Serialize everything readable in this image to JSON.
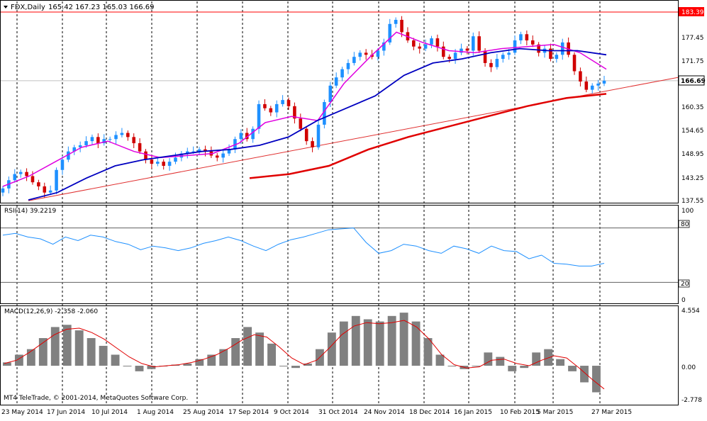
{
  "header": {
    "symbol_label": "FDX,Daily",
    "ohlc": "165.42 167.23 165.03 166.69"
  },
  "main_scale": [
    "183.39",
    "177.45",
    "171.75",
    "166.69",
    "160.35",
    "154.65",
    "148.95",
    "143.25",
    "137.55"
  ],
  "rsi": {
    "label": "RSI(14) 39.2219",
    "scale": [
      "100",
      "80",
      "20",
      "0"
    ]
  },
  "macd": {
    "label": "MACD(12,26,9) -2.358 -2.060",
    "scale": [
      "4.554",
      "0.00",
      "-2.778"
    ]
  },
  "footer": {
    "copyright": "MT4 TeleTrade, © 2001-2014, MetaQuotes Software Corp."
  },
  "time_axis": [
    "23 May 2014",
    "17 Jun 2014",
    "10 Jul 2014",
    "1 Aug 2014",
    "25 Aug 2014",
    "17 Sep 2014",
    "9 Oct 2014",
    "31 Oct 2014",
    "24 Nov 2014",
    "18 Dec 2014",
    "16 Jan 2015",
    "10 Feb 2015",
    "5 Mar 2015",
    "27 Mar 2015"
  ],
  "colors": {
    "bull_candle": "#1e90ff",
    "bear_candle": "#d00000",
    "ma_fast": "#e000e0",
    "ma_mid": "#0000c0",
    "ma_slow": "#e00000",
    "trendline": "#e03030",
    "rsi_line": "#1e90ff",
    "macd_hist": "#808080",
    "macd_signal": "#e00000",
    "resistance_line": "#ff0000"
  },
  "chart_data": {
    "type": "candlestick",
    "symbol": "FDX",
    "timeframe": "Daily",
    "close_approx": [
      140.5,
      142.5,
      144.0,
      144.5,
      143.5,
      142.0,
      141.0,
      139.5,
      140.0,
      145.0,
      147.5,
      149.5,
      150.5,
      151.0,
      152.0,
      153.0,
      151.5,
      152.5,
      152.5,
      153.5,
      154.0,
      153.0,
      151.5,
      149.5,
      147.5,
      146.5,
      147.0,
      146.0,
      147.0,
      148.0,
      149.0,
      149.5,
      149.5,
      150.0,
      149.5,
      148.5,
      148.0,
      149.0,
      150.0,
      152.5,
      154.0,
      152.5,
      155.0,
      161.0,
      160.0,
      159.0,
      161.0,
      162.0,
      160.5,
      157.5,
      155.0,
      152.0,
      150.5,
      156.0,
      161.5,
      165.5,
      167.5,
      169.5,
      171.0,
      172.5,
      173.5,
      173.0,
      172.5,
      174.0,
      176.0,
      180.5,
      181.5,
      178.5,
      176.5,
      175.0,
      174.5,
      175.5,
      177.0,
      175.0,
      172.5,
      172.0,
      173.5,
      174.5,
      174.0,
      177.5,
      174.0,
      171.0,
      170.0,
      172.0,
      173.0,
      173.5,
      176.5,
      178.0,
      176.5,
      175.5,
      173.5,
      174.5,
      172.0,
      173.0,
      176.0,
      173.0,
      169.0,
      166.5,
      164.5,
      165.5,
      166.0,
      166.69
    ],
    "ma_fast": [
      141.0,
      143.5,
      147.0,
      150.5,
      152.0,
      149.5,
      148.0,
      148.5,
      149.0,
      151.5,
      156.5,
      158.0,
      157.0,
      166.0,
      172.5,
      178.5,
      176.0,
      174.0,
      173.5,
      174.5,
      175.0,
      175.5,
      173.5,
      169.5
    ],
    "ma_mid": [
      137.7,
      139.5,
      143.0,
      146.0,
      147.5,
      148.5,
      149.5,
      150.0,
      151.0,
      153.0,
      157.0,
      160.0,
      163.0,
      168.0,
      171.0,
      172.0,
      173.5,
      174.5,
      174.0,
      174.0,
      173.0
    ],
    "ma_slow": [
      143.0,
      144.0,
      146.0,
      150.0,
      153.0,
      155.5,
      158.0,
      160.5,
      162.5,
      163.5
    ],
    "trendline": [
      [
        0,
        137.5
      ],
      [
        1,
        167.5
      ]
    ],
    "horizontal_level": 183.39,
    "main_scale": [
      183.39,
      177.45,
      171.75,
      166.69,
      160.35,
      154.65,
      148.95,
      143.25,
      137.55
    ],
    "rsi": {
      "period": 14,
      "value": 39.2219,
      "levels": [
        80,
        20
      ],
      "ylim": [
        0,
        100
      ],
      "values": [
        72,
        74,
        70,
        68,
        62,
        70,
        66,
        72,
        70,
        65,
        62,
        56,
        60,
        58,
        55,
        58,
        63,
        66,
        70,
        66,
        60,
        55,
        62,
        67,
        70,
        74,
        78,
        79,
        80,
        64,
        52,
        55,
        62,
        60,
        55,
        52,
        60,
        57,
        52,
        60,
        55,
        54,
        46,
        50,
        41,
        40,
        38,
        38,
        41
      ]
    },
    "macd": {
      "fast": 12,
      "slow": 26,
      "signal": 9,
      "main": -2.358,
      "signal_value": -2.06,
      "ylim": [
        -3.2,
        5.0
      ],
      "hist": [
        0.3,
        1.0,
        1.5,
        2.5,
        3.5,
        3.7,
        3.2,
        2.5,
        1.8,
        1.0,
        0.0,
        -0.5,
        -0.3,
        0.0,
        0.1,
        0.2,
        0.6,
        1.0,
        1.5,
        2.5,
        3.5,
        3.0,
        2.0,
        0.0,
        -0.2,
        0.2,
        1.5,
        3.0,
        4.0,
        4.5,
        4.2,
        4.0,
        4.5,
        4.8,
        4.0,
        2.5,
        1.0,
        0.0,
        -0.3,
        0.0,
        1.2,
        0.8,
        -0.5,
        -0.2,
        1.2,
        1.5,
        0.6,
        -0.5,
        -1.5,
        -2.4
      ],
      "signal_line": [
        0.2,
        0.5,
        1.2,
        2.0,
        2.8,
        3.3,
        3.4,
        3.0,
        2.4,
        1.6,
        0.8,
        0.2,
        -0.1,
        0.0,
        0.1,
        0.3,
        0.6,
        1.0,
        1.6,
        2.3,
        2.8,
        2.6,
        1.7,
        0.7,
        0.1,
        0.5,
        1.6,
        2.8,
        3.6,
        3.9,
        3.8,
        3.9,
        4.1,
        3.5,
        2.4,
        1.0,
        0.1,
        -0.2,
        -0.1,
        0.5,
        0.6,
        0.2,
        0.0,
        0.5,
        0.9,
        0.7,
        -0.2,
        -1.2,
        -2.1
      ]
    }
  }
}
